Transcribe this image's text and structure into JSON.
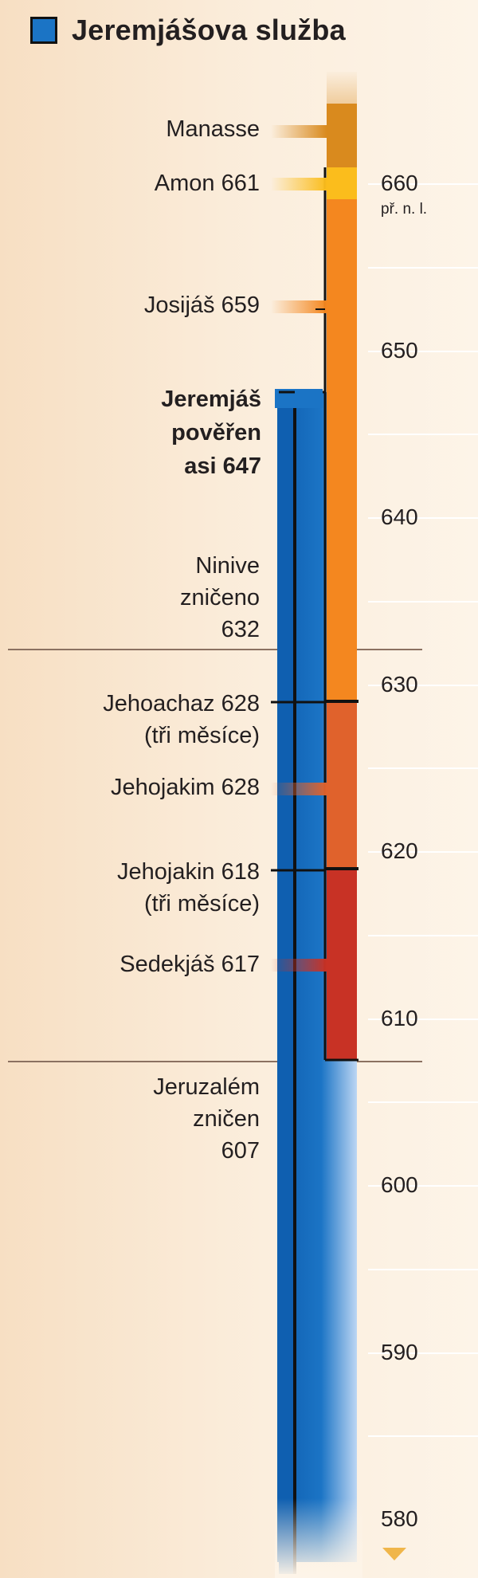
{
  "title": "Jeremjášova služba",
  "colors": {
    "ministry": "#1b74c5",
    "manasse": "#d98a1e",
    "amon": "#fbbd1c",
    "josias": "#f4871f",
    "jehojakim": "#e0622c",
    "sedekias": "#c83225"
  },
  "axis": {
    "unit": "př. n. l.",
    "ticks": [
      {
        "year": "660"
      },
      {
        "year": "650"
      },
      {
        "year": "640"
      },
      {
        "year": "630"
      },
      {
        "year": "620"
      },
      {
        "year": "610"
      },
      {
        "year": "600"
      },
      {
        "year": "590"
      },
      {
        "year": "580"
      }
    ]
  },
  "labels": {
    "manasse": "Manasse",
    "amon": "Amon 661",
    "josias": "Josijáš 659",
    "jeremias": [
      "Jeremjáš",
      "pověřen",
      "asi 647"
    ],
    "ninive": [
      "Ninive",
      "zničeno",
      "632"
    ],
    "jehoachaz": [
      "Jehoachaz 628",
      "(tři měsíce)"
    ],
    "jehojakim": "Jehojakim 628",
    "jehojakin": [
      "Jehojakin 618",
      "(tři měsíce)"
    ],
    "sedekias": "Sedekjáš 617",
    "jeruzalem": [
      "Jeruzalém",
      "zničen",
      "607"
    ]
  }
}
